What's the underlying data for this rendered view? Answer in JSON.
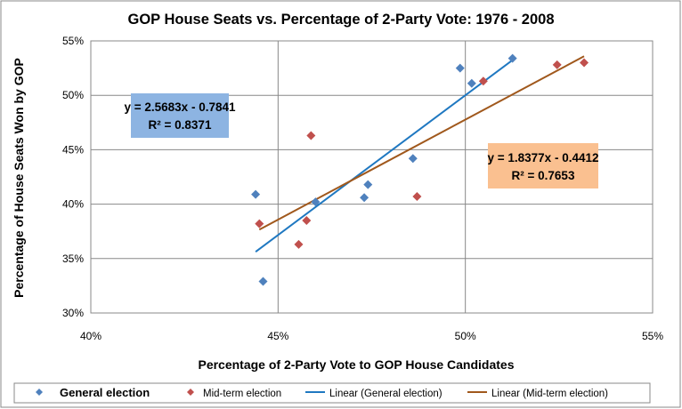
{
  "chart_data": {
    "type": "scatter",
    "title": "GOP House Seats vs. Percentage of 2-Party Vote: 1976 - 2008",
    "xlabel": "Percentage of 2-Party Vote to GOP House Candidates",
    "ylabel": "Percentage of House Seats Won by GOP",
    "xlim": [
      0.4,
      0.55
    ],
    "ylim": [
      0.3,
      0.55
    ],
    "xticks": [
      "40%",
      "45%",
      "50%",
      "55%"
    ],
    "yticks": [
      "30%",
      "35%",
      "40%",
      "45%",
      "50%",
      "55%"
    ],
    "grid": true,
    "legend_placement": "bottom",
    "series": [
      {
        "name": "General election",
        "color": "#4F81BD",
        "marker": "diamond",
        "points": [
          [
            0.444,
            0.409
          ],
          [
            0.446,
            0.329
          ],
          [
            0.46,
            0.402
          ],
          [
            0.474,
            0.418
          ],
          [
            0.473,
            0.406
          ],
          [
            0.486,
            0.442
          ],
          [
            0.4986,
            0.525
          ],
          [
            0.5017,
            0.511
          ],
          [
            0.5126,
            0.534
          ]
        ]
      },
      {
        "name": "Mid-term election",
        "color": "#C0504D",
        "marker": "diamond",
        "points": [
          [
            0.4588,
            0.463
          ],
          [
            0.445,
            0.382
          ],
          [
            0.4576,
            0.385
          ],
          [
            0.4555,
            0.363
          ],
          [
            0.4871,
            0.407
          ],
          [
            0.5048,
            0.513
          ],
          [
            0.5245,
            0.528
          ],
          [
            0.5317,
            0.53
          ]
        ]
      }
    ],
    "trendlines": [
      {
        "name": "Linear (General election)",
        "color": "#1F78C1",
        "slope": 2.5683,
        "intercept": -0.7841,
        "x_range": [
          0.444,
          0.5126
        ],
        "equation": "y = 2.5683x - 0.7841",
        "r2": "R² = 0.8371",
        "label_bg": "#8DB4E2"
      },
      {
        "name": "Linear (Mid-term election)",
        "color": "#A0581C",
        "slope": 1.8377,
        "intercept": -0.4412,
        "x_range": [
          0.445,
          0.5317
        ],
        "equation": "y = 1.8377x - 0.4412",
        "r2": "R² = 0.7653",
        "label_bg": "#FAC090"
      }
    ]
  }
}
